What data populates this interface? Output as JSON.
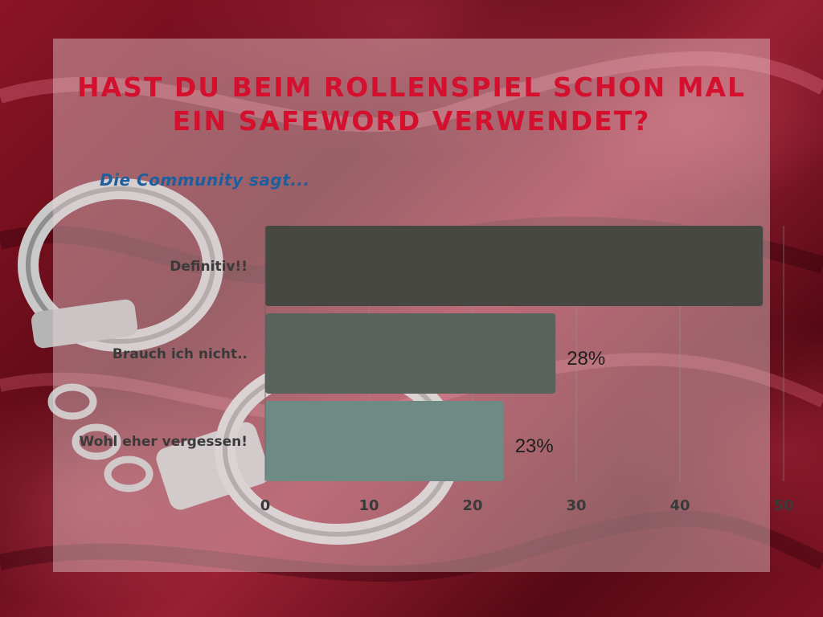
{
  "title": "Hast du beim Rollenspiel schon mal ein Safeword verwendet?",
  "subtitle": "Die Community sagt...",
  "colors": {
    "title": "#d4102e",
    "subtitle": "#1c5f9e",
    "bar_1": "#474842",
    "bar_2": "#5a625c",
    "bar_3": "#6e8a84"
  },
  "chart_data": {
    "type": "bar",
    "orientation": "horizontal",
    "title": "",
    "xlabel": "",
    "ylabel": "",
    "categories": [
      "Definitiv!!",
      "Brauch ich nicht..",
      "Wohl eher vergessen!"
    ],
    "values": [
      48,
      28,
      23
    ],
    "data_labels": [
      "",
      "28%",
      "23%"
    ],
    "xlim": [
      0,
      50
    ],
    "xticks": [
      0,
      10,
      20,
      30,
      40,
      50
    ],
    "grid": true,
    "legend": "none"
  }
}
